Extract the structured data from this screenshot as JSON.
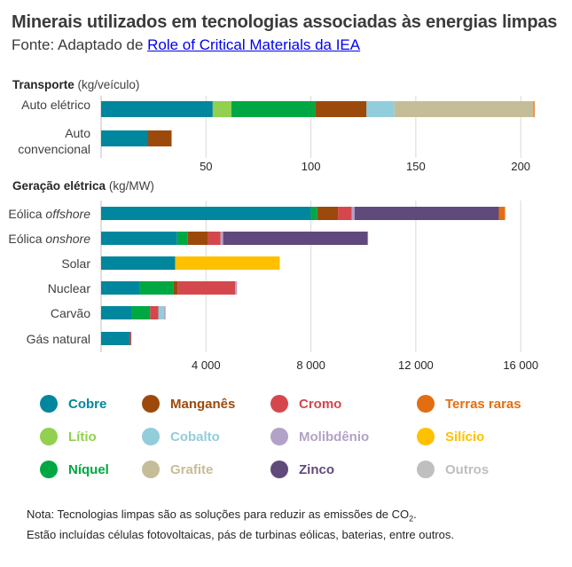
{
  "header": {
    "title": "Minerais utilizados em tecnologias associadas às energias limpas",
    "source_prefix": "Fonte: Adaptado de ",
    "source_link": "Role of Critical Materials da IEA"
  },
  "note": {
    "line1_prefix": "Nota: Tecnologias limpas são as soluções para reduzir as emissões de CO",
    "line1_sub": "2",
    "line1_suffix": ".",
    "line2": "Estão incluídas células fotovoltaicas, pás de turbinas eólicas, baterias, entre outros."
  },
  "chart_data": [
    {
      "type": "bar",
      "orientation": "horizontal",
      "stacked": true,
      "title": "Transporte",
      "unit": "(kg/veículo)",
      "categories": [
        "Auto elétrico",
        "Auto convencional"
      ],
      "category_lines": [
        [
          "Auto elétrico"
        ],
        [
          "Auto",
          "convencional"
        ]
      ],
      "xlim": [
        0,
        210
      ],
      "ticks": [
        50,
        100,
        150,
        200
      ],
      "tick_labels": [
        "50",
        "100",
        "150",
        "200"
      ],
      "grid": true,
      "series": [
        {
          "name": "Cobre",
          "values": [
            53.2,
            22.4
          ]
        },
        {
          "name": "Lítio",
          "values": [
            8.9,
            0
          ]
        },
        {
          "name": "Níquel",
          "values": [
            39.9,
            0
          ]
        },
        {
          "name": "Manganês",
          "values": [
            24.5,
            11.2
          ]
        },
        {
          "name": "Cobalto",
          "values": [
            13.3,
            0
          ]
        },
        {
          "name": "Grafite",
          "values": [
            66.3,
            0
          ]
        },
        {
          "name": "Terras raras",
          "values": [
            0.5,
            0
          ]
        }
      ]
    },
    {
      "type": "bar",
      "orientation": "horizontal",
      "stacked": true,
      "title": "Geração elétrica",
      "unit": "(kg/MW)",
      "categories": [
        "Eólica offshore",
        "Eólica onshore",
        "Solar",
        "Nuclear",
        "Carvão",
        "Gás natural"
      ],
      "category_lines": [
        [
          "Eólica ",
          "offshore"
        ],
        [
          "Eólica ",
          "onshore"
        ],
        [
          "Solar"
        ],
        [
          "Nuclear"
        ],
        [
          "Carvão"
        ],
        [
          "Gás natural"
        ]
      ],
      "xlim": [
        0,
        17500
      ],
      "ticks": [
        4000,
        8000,
        12000,
        16000
      ],
      "tick_labels": [
        "4 000",
        "8 000",
        "12 000",
        "16 000"
      ],
      "grid": true,
      "series": [
        {
          "name": "Cobre",
          "values": [
            8000,
            2900,
            2822,
            1473,
            1150,
            1100
          ]
        },
        {
          "name": "Níquel",
          "values": [
            240,
            404,
            0,
            1297,
            721,
            0
          ]
        },
        {
          "name": "Manganês",
          "values": [
            790,
            780,
            0,
            150,
            0,
            0
          ]
        },
        {
          "name": "Cromo",
          "values": [
            525,
            470,
            0,
            2190,
            310,
            50
          ]
        },
        {
          "name": "Cobalto",
          "values": [
            0,
            0,
            0,
            0,
            210,
            0
          ]
        },
        {
          "name": "Molibdênio",
          "values": [
            109,
            99,
            0,
            71,
            66,
            0
          ]
        },
        {
          "name": "Zinco",
          "values": [
            5500,
            5500,
            0,
            0,
            0,
            0
          ]
        },
        {
          "name": "Silício",
          "values": [
            0,
            0,
            3990,
            0,
            0,
            0
          ]
        },
        {
          "name": "Terras raras",
          "values": [
            239,
            14,
            0,
            0,
            0,
            0
          ]
        }
      ]
    }
  ],
  "legend": [
    {
      "name": "Cobre",
      "color": "#00879d"
    },
    {
      "name": "Manganês",
      "color": "#9c4a0c"
    },
    {
      "name": "Cromo",
      "color": "#d4484d"
    },
    {
      "name": "Terras raras",
      "color": "#e36e12"
    },
    {
      "name": "Lítio",
      "color": "#92d050"
    },
    {
      "name": "Cobalto",
      "color": "#92cddc"
    },
    {
      "name": "Molibdênio",
      "color": "#b3a2c7"
    },
    {
      "name": "Silício",
      "color": "#ffc000"
    },
    {
      "name": "Níquel",
      "color": "#00a843"
    },
    {
      "name": "Grafite",
      "color": "#c4bd97"
    },
    {
      "name": "Zinco",
      "color": "#604a7b"
    },
    {
      "name": "Outros",
      "color": "#bfbfbf"
    }
  ],
  "legend_label_colors": {
    "Cobre": "#00879d",
    "Manganês": "#9c4a0c",
    "Cromo": "#d4484d",
    "Terras raras": "#e36e12",
    "Lítio": "#92d050",
    "Cobalto": "#92cddc",
    "Molibdênio": "#b3a2c7",
    "Silício": "#ffc000",
    "Níquel": "#00a843",
    "Grafite": "#c4bd97",
    "Zinco": "#604a7b",
    "Outros": "#bfbfbf"
  }
}
